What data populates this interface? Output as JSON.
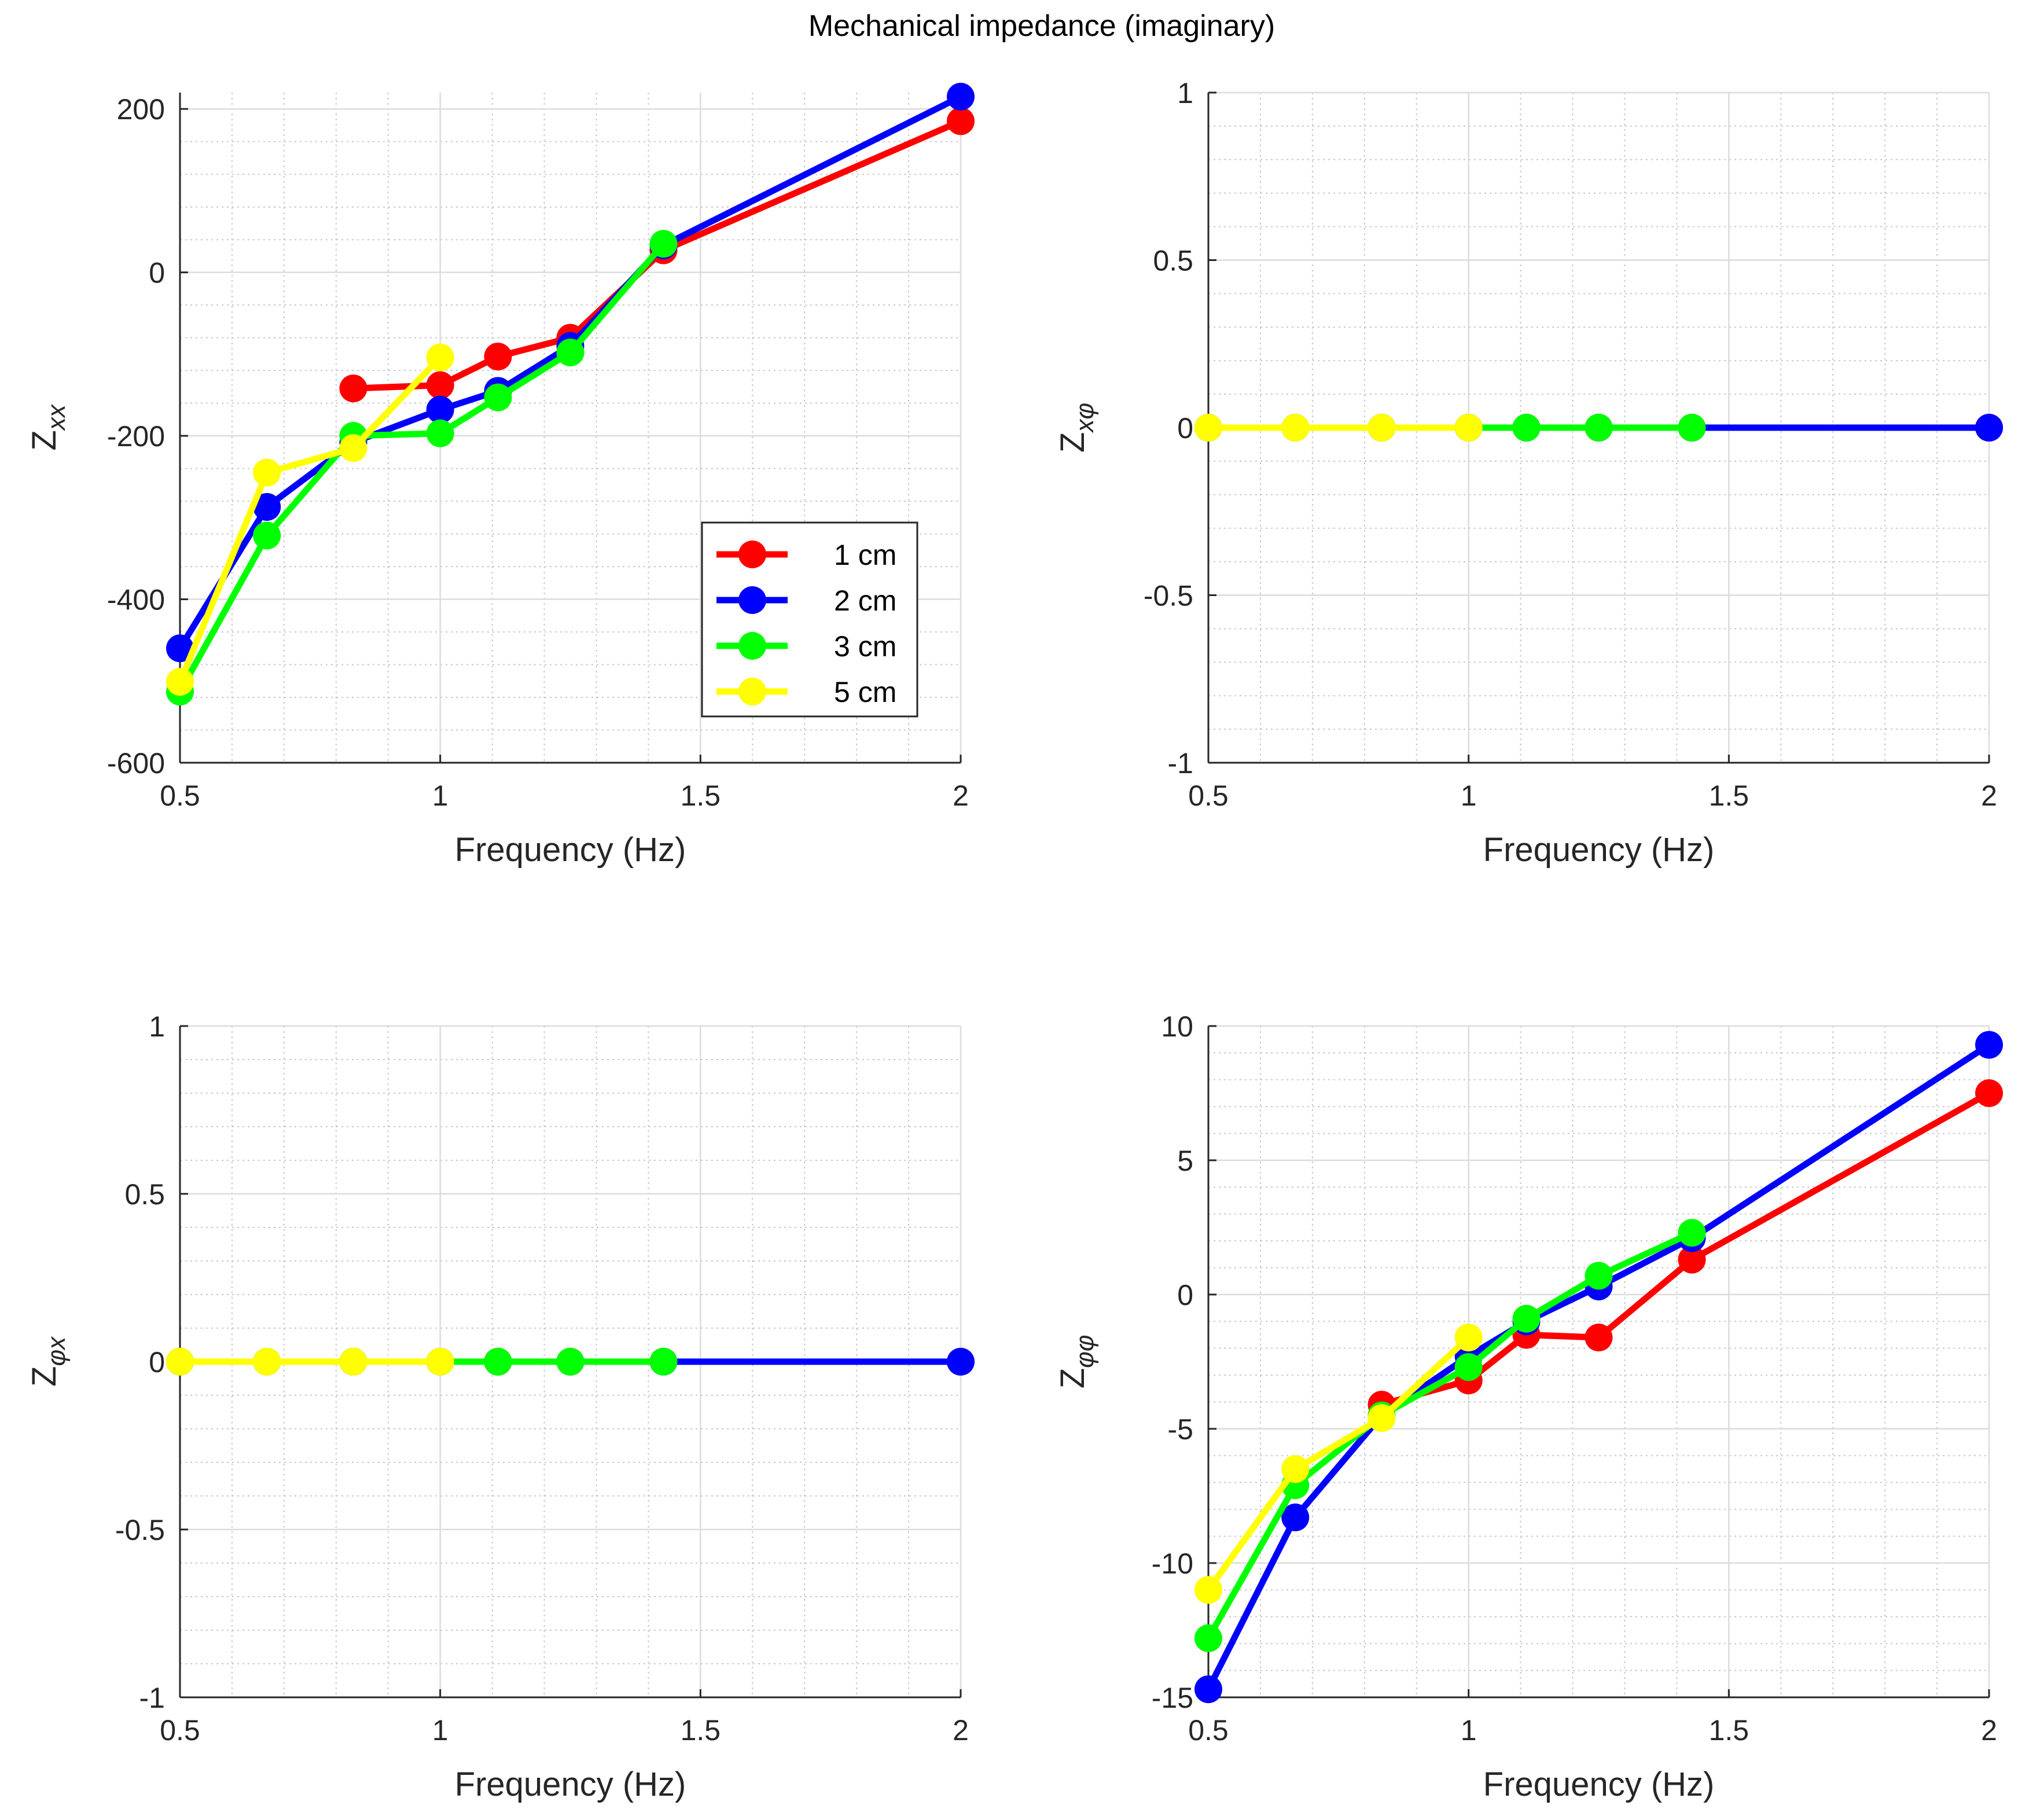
{
  "figure_title": "Mechanical impedance (imaginary)",
  "colors": {
    "1 cm": "#ff0000",
    "2 cm": "#0000ff",
    "3 cm": "#00ff00",
    "5 cm": "#ffff00"
  },
  "chart_data": [
    {
      "type": "line",
      "title": "",
      "xlabel": "Frequency (Hz)",
      "ylabel_base": "Z",
      "ylabel_sub": "xx",
      "xlim": [
        0.5,
        2
      ],
      "ylim": [
        -600,
        220
      ],
      "xticks": [
        0.5,
        1,
        1.5,
        2
      ],
      "xtick_labels": [
        "0.5",
        "1",
        "1.5",
        "2"
      ],
      "yticks": [
        -600,
        -400,
        -200,
        0,
        200
      ],
      "ytick_labels": [
        "-600",
        "-400",
        "-200",
        "0",
        "200"
      ],
      "grid": true,
      "legend": {
        "placement": "lower-right",
        "entries": [
          "1 cm",
          "2 cm",
          "3 cm",
          "5 cm"
        ]
      },
      "series": [
        {
          "name": "1 cm",
          "x": [
            0.833,
            1.0,
            1.111,
            1.25,
            1.429,
            2.0
          ],
          "y": [
            -142,
            -138,
            -103,
            -80,
            27,
            185
          ]
        },
        {
          "name": "2 cm",
          "x": [
            0.5,
            0.667,
            0.833,
            1.0,
            1.111,
            1.25,
            1.429,
            2.0
          ],
          "y": [
            -460,
            -287,
            -208,
            -168,
            -145,
            -90,
            33,
            215
          ]
        },
        {
          "name": "3 cm",
          "x": [
            0.5,
            0.667,
            0.833,
            1.0,
            1.111,
            1.25,
            1.429
          ],
          "y": [
            -513,
            -322,
            -200,
            -197,
            -153,
            -98,
            35
          ]
        },
        {
          "name": "5 cm",
          "x": [
            0.5,
            0.667,
            0.833,
            1.0
          ],
          "y": [
            -501,
            -245,
            -215,
            -104
          ]
        }
      ]
    },
    {
      "type": "line",
      "title": "",
      "xlabel": "Frequency (Hz)",
      "ylabel_base": "Z",
      "ylabel_sub": "xφ",
      "xlim": [
        0.5,
        2
      ],
      "ylim": [
        -1,
        1
      ],
      "xticks": [
        0.5,
        1,
        1.5,
        2
      ],
      "xtick_labels": [
        "0.5",
        "1",
        "1.5",
        "2"
      ],
      "yticks": [
        -1,
        -0.5,
        0,
        0.5,
        1
      ],
      "ytick_labels": [
        "-1",
        "-0.5",
        "0",
        "0.5",
        "1"
      ],
      "grid": true,
      "series": [
        {
          "name": "1 cm",
          "x": [
            0.833,
            1.0,
            1.111,
            1.25,
            1.429,
            2.0
          ],
          "y": [
            0,
            0,
            0,
            0,
            0,
            0
          ]
        },
        {
          "name": "2 cm",
          "x": [
            0.5,
            0.667,
            0.833,
            1.0,
            1.111,
            1.25,
            1.429,
            2.0
          ],
          "y": [
            0,
            0,
            0,
            0,
            0,
            0,
            0,
            0
          ]
        },
        {
          "name": "3 cm",
          "x": [
            0.5,
            0.667,
            0.833,
            1.0,
            1.111,
            1.25,
            1.429
          ],
          "y": [
            0,
            0,
            0,
            0,
            0,
            0,
            0
          ]
        },
        {
          "name": "5 cm",
          "x": [
            0.5,
            0.667,
            0.833,
            1.0
          ],
          "y": [
            0,
            0,
            0,
            0
          ]
        }
      ]
    },
    {
      "type": "line",
      "title": "",
      "xlabel": "Frequency (Hz)",
      "ylabel_base": "Z",
      "ylabel_sub": "φx",
      "xlim": [
        0.5,
        2
      ],
      "ylim": [
        -1,
        1
      ],
      "xticks": [
        0.5,
        1,
        1.5,
        2
      ],
      "xtick_labels": [
        "0.5",
        "1",
        "1.5",
        "2"
      ],
      "yticks": [
        -1,
        -0.5,
        0,
        0.5,
        1
      ],
      "ytick_labels": [
        "-1",
        "-0.5",
        "0",
        "0.5",
        "1"
      ],
      "grid": true,
      "series": [
        {
          "name": "1 cm",
          "x": [
            0.833,
            1.0,
            1.111,
            1.25,
            1.429,
            2.0
          ],
          "y": [
            0,
            0,
            0,
            0,
            0,
            0
          ]
        },
        {
          "name": "2 cm",
          "x": [
            0.5,
            0.667,
            0.833,
            1.0,
            1.111,
            1.25,
            1.429,
            2.0
          ],
          "y": [
            0,
            0,
            0,
            0,
            0,
            0,
            0,
            0
          ]
        },
        {
          "name": "3 cm",
          "x": [
            0.5,
            0.667,
            0.833,
            1.0,
            1.111,
            1.25,
            1.429
          ],
          "y": [
            0,
            0,
            0,
            0,
            0,
            0,
            0
          ]
        },
        {
          "name": "5 cm",
          "x": [
            0.5,
            0.667,
            0.833,
            1.0
          ],
          "y": [
            0,
            0,
            0,
            0
          ]
        }
      ]
    },
    {
      "type": "line",
      "title": "",
      "xlabel": "Frequency (Hz)",
      "ylabel_base": "Z",
      "ylabel_sub": "φφ",
      "xlim": [
        0.5,
        2
      ],
      "ylim": [
        -15,
        10
      ],
      "xticks": [
        0.5,
        1,
        1.5,
        2
      ],
      "xtick_labels": [
        "0.5",
        "1",
        "1.5",
        "2"
      ],
      "yticks": [
        -15,
        -10,
        -5,
        0,
        5,
        10
      ],
      "ytick_labels": [
        "-15",
        "-10",
        "-5",
        "0",
        "5",
        "10"
      ],
      "grid": true,
      "series": [
        {
          "name": "1 cm",
          "x": [
            0.833,
            1.0,
            1.111,
            1.25,
            1.429,
            2.0
          ],
          "y": [
            -4.1,
            -3.2,
            -1.5,
            -1.6,
            1.3,
            7.5
          ]
        },
        {
          "name": "2 cm",
          "x": [
            0.5,
            0.667,
            0.833,
            1.0,
            1.111,
            1.25,
            1.429,
            2.0
          ],
          "y": [
            -14.7,
            -8.3,
            -4.5,
            -2.3,
            -1.0,
            0.3,
            2.1,
            9.3
          ]
        },
        {
          "name": "3 cm",
          "x": [
            0.5,
            0.667,
            0.833,
            1.0,
            1.111,
            1.25,
            1.429
          ],
          "y": [
            -12.8,
            -7.1,
            -4.5,
            -2.7,
            -0.9,
            0.7,
            2.3
          ]
        },
        {
          "name": "5 cm",
          "x": [
            0.5,
            0.667,
            0.833,
            1.0
          ],
          "y": [
            -11.0,
            -6.5,
            -4.6,
            -1.6
          ]
        }
      ]
    }
  ]
}
